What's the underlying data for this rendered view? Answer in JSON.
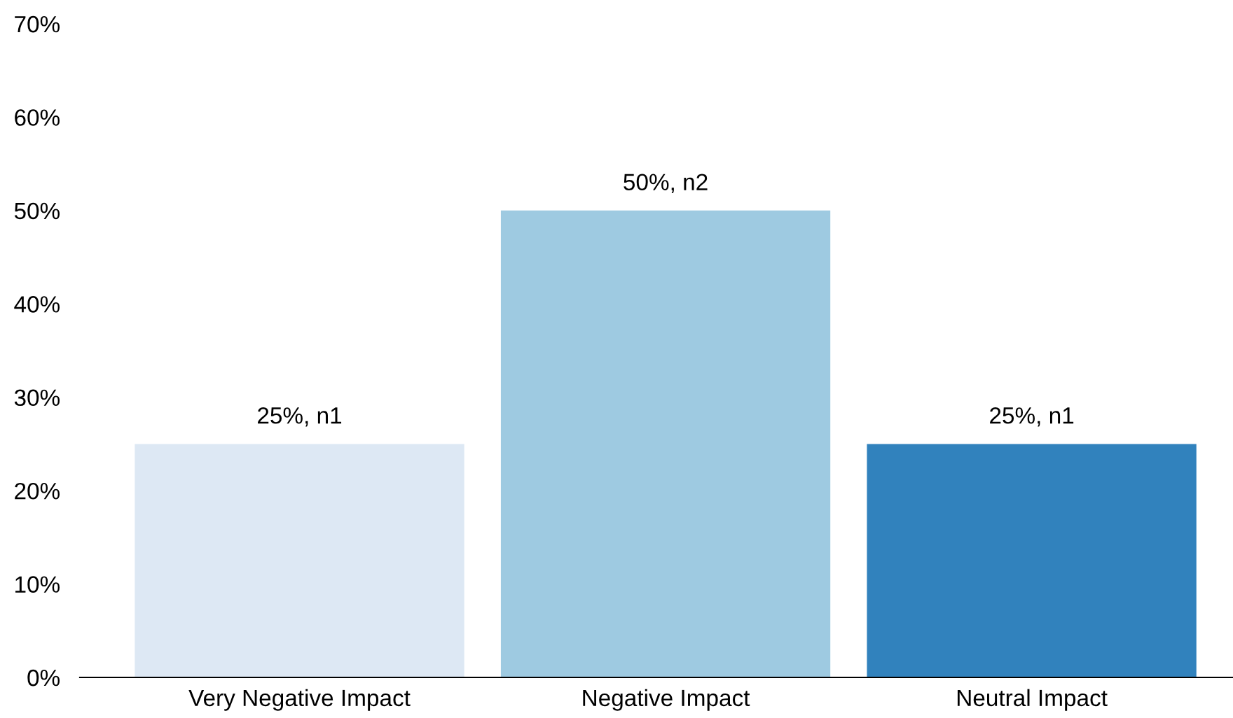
{
  "chart_data": {
    "type": "bar",
    "categories": [
      "Very Negative Impact",
      "Negative Impact",
      "Neutral Impact"
    ],
    "values": [
      25,
      50,
      25
    ],
    "colors": [
      "#dde8f4",
      "#9ecae1",
      "#3182bd"
    ],
    "value_labels": [
      "25%, n1",
      "50%, n2",
      "25%, n1"
    ],
    "ylim": [
      0,
      70
    ],
    "yticks": [
      {
        "value": 0,
        "label": "0%"
      },
      {
        "value": 10,
        "label": "10%"
      },
      {
        "value": 20,
        "label": "20%"
      },
      {
        "value": 30,
        "label": "30%"
      },
      {
        "value": 40,
        "label": "40%"
      },
      {
        "value": 50,
        "label": "50%"
      },
      {
        "value": 60,
        "label": "60%"
      },
      {
        "value": 70,
        "label": "70%"
      }
    ],
    "grid": false,
    "legend": false
  }
}
